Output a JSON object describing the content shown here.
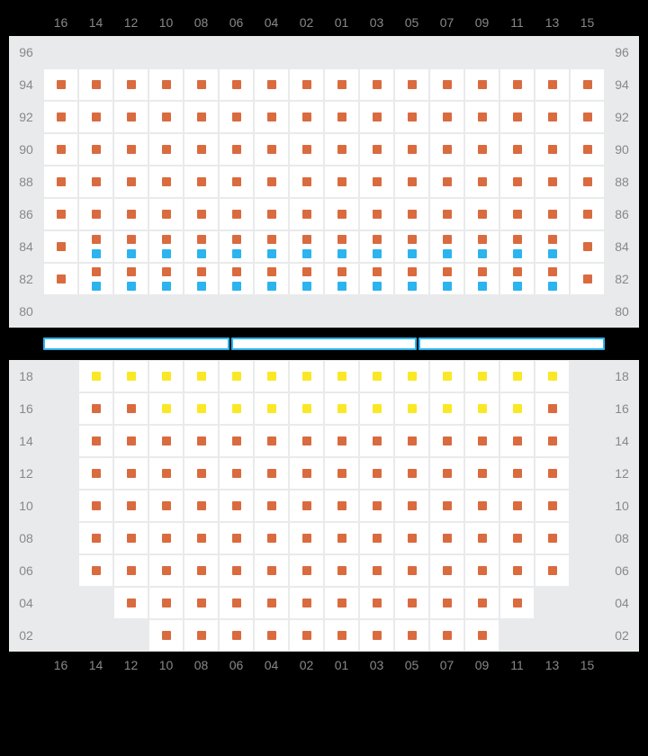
{
  "colors": {
    "orange": "#d96b3f",
    "blue": "#2bb4ee",
    "yellow": "#fae826",
    "cell_bg": "#ffffff",
    "empty_bg": "#e9eaeb",
    "label": "#888888",
    "page_bg": "#000000"
  },
  "columns": [
    "16",
    "14",
    "12",
    "10",
    "08",
    "06",
    "04",
    "02",
    "01",
    "03",
    "05",
    "07",
    "09",
    "11",
    "13",
    "15"
  ],
  "top": {
    "rows": [
      "96",
      "94",
      "92",
      "90",
      "88",
      "86",
      "84",
      "82",
      "80"
    ],
    "cells": {
      "96": [
        "e",
        "e",
        "e",
        "e",
        "e",
        "e",
        "e",
        "e",
        "e",
        "e",
        "e",
        "e",
        "e",
        "e",
        "e",
        "e"
      ],
      "94": [
        "o",
        "o",
        "o",
        "o",
        "o",
        "o",
        "o",
        "o",
        "o",
        "o",
        "o",
        "o",
        "o",
        "o",
        "o",
        "o"
      ],
      "92": [
        "o",
        "o",
        "o",
        "o",
        "o",
        "o",
        "o",
        "o",
        "o",
        "o",
        "o",
        "o",
        "o",
        "o",
        "o",
        "o"
      ],
      "90": [
        "o",
        "o",
        "o",
        "o",
        "o",
        "o",
        "o",
        "o",
        "o",
        "o",
        "o",
        "o",
        "o",
        "o",
        "o",
        "o"
      ],
      "88": [
        "o",
        "o",
        "o",
        "o",
        "o",
        "o",
        "o",
        "o",
        "o",
        "o",
        "o",
        "o",
        "o",
        "o",
        "o",
        "o"
      ],
      "86": [
        "o",
        "o",
        "o",
        "o",
        "o",
        "o",
        "o",
        "o",
        "o",
        "o",
        "o",
        "o",
        "o",
        "o",
        "o",
        "o"
      ],
      "84": [
        "o",
        "ob",
        "ob",
        "ob",
        "ob",
        "ob",
        "ob",
        "ob",
        "ob",
        "ob",
        "ob",
        "ob",
        "ob",
        "ob",
        "ob",
        "o"
      ],
      "82": [
        "o",
        "ob",
        "ob",
        "ob",
        "ob",
        "ob",
        "ob",
        "ob",
        "ob",
        "ob",
        "ob",
        "ob",
        "ob",
        "ob",
        "ob",
        "o"
      ],
      "80": [
        "e",
        "e",
        "e",
        "e",
        "e",
        "e",
        "e",
        "e",
        "e",
        "e",
        "e",
        "e",
        "e",
        "e",
        "e",
        "e"
      ]
    }
  },
  "bottom": {
    "rows": [
      "18",
      "16",
      "14",
      "12",
      "10",
      "08",
      "06",
      "04",
      "02"
    ],
    "cells": {
      "18": [
        "e",
        "y",
        "y",
        "y",
        "y",
        "y",
        "y",
        "y",
        "y",
        "y",
        "y",
        "y",
        "y",
        "y",
        "y",
        "e"
      ],
      "16": [
        "e",
        "o",
        "o",
        "y",
        "y",
        "y",
        "y",
        "y",
        "y",
        "y",
        "y",
        "y",
        "y",
        "y",
        "o",
        "e"
      ],
      "14": [
        "e",
        "o",
        "o",
        "o",
        "o",
        "o",
        "o",
        "o",
        "o",
        "o",
        "o",
        "o",
        "o",
        "o",
        "o",
        "e"
      ],
      "12": [
        "e",
        "o",
        "o",
        "o",
        "o",
        "o",
        "o",
        "o",
        "o",
        "o",
        "o",
        "o",
        "o",
        "o",
        "o",
        "e"
      ],
      "10": [
        "e",
        "o",
        "o",
        "o",
        "o",
        "o",
        "o",
        "o",
        "o",
        "o",
        "o",
        "o",
        "o",
        "o",
        "o",
        "e"
      ],
      "08": [
        "e",
        "o",
        "o",
        "o",
        "o",
        "o",
        "o",
        "o",
        "o",
        "o",
        "o",
        "o",
        "o",
        "o",
        "o",
        "e"
      ],
      "06": [
        "e",
        "o",
        "o",
        "o",
        "o",
        "o",
        "o",
        "o",
        "o",
        "o",
        "o",
        "o",
        "o",
        "o",
        "o",
        "e"
      ],
      "04": [
        "e",
        "e",
        "o",
        "o",
        "o",
        "o",
        "o",
        "o",
        "o",
        "o",
        "o",
        "o",
        "o",
        "o",
        "e",
        "e"
      ],
      "02": [
        "e",
        "e",
        "e",
        "o",
        "o",
        "o",
        "o",
        "o",
        "o",
        "o",
        "o",
        "o",
        "o",
        "e",
        "e",
        "e"
      ]
    }
  },
  "divider_segments": 3
}
